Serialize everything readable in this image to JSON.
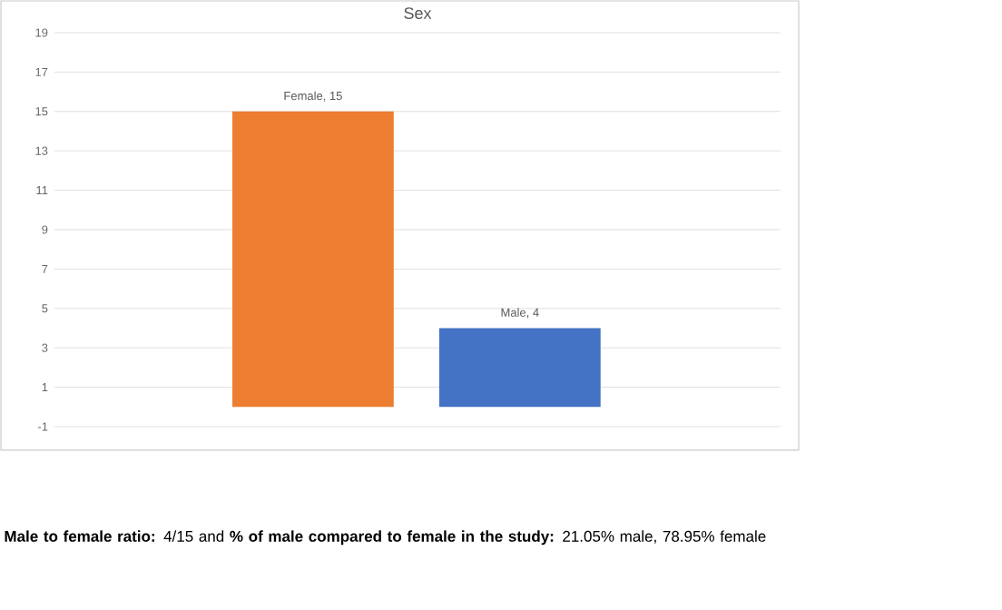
{
  "chart_data": {
    "type": "bar",
    "title": "Sex",
    "categories": [
      null,
      null
    ],
    "values": [
      15,
      4
    ],
    "colors": [
      "#ed7d31",
      "#4472c4"
    ],
    "value_labels": [
      "Female, 15",
      "Male, 4"
    ],
    "ylim": [
      -1,
      19
    ],
    "yticks": [
      -1,
      1,
      3,
      5,
      7,
      9,
      11,
      13,
      15,
      17,
      19
    ],
    "grid": "y",
    "annotations": [
      "**Male to female ratio:** 4/15 and **% of male compared to female in the study:** 21.05% male, 78.95% female"
    ]
  }
}
